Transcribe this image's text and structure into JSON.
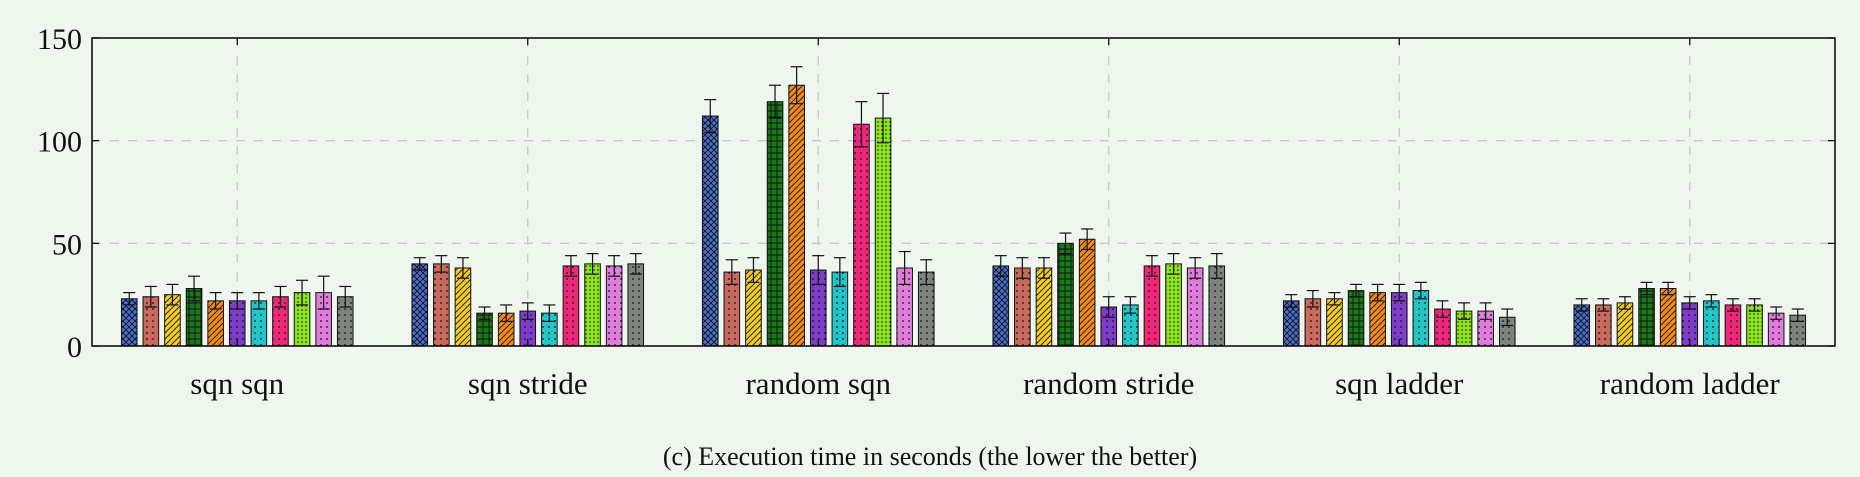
{
  "chart_data": {
    "type": "bar",
    "caption": "(c) Execution time in seconds (the lower the better)",
    "categories": [
      "sqn sqn",
      "sqn stride",
      "random sqn",
      "random stride",
      "sqn ladder",
      "random ladder"
    ],
    "ylim": [
      0,
      150
    ],
    "yticks": [
      0,
      50,
      100,
      150
    ],
    "grid": true,
    "legend": "none",
    "series": [
      {
        "color": "#4a6fd0",
        "pattern": "crosshatch-diag",
        "values": [
          23,
          40,
          112,
          39,
          22,
          20
        ],
        "errors": [
          3,
          3,
          8,
          5,
          3,
          3
        ]
      },
      {
        "color": "#c86a5e",
        "pattern": "dots",
        "values": [
          24,
          40,
          36,
          38,
          23,
          20
        ],
        "errors": [
          5,
          4,
          6,
          5,
          4,
          3
        ]
      },
      {
        "color": "#f2cc26",
        "pattern": "diag-right",
        "values": [
          25,
          38,
          37,
          38,
          23,
          21
        ],
        "errors": [
          5,
          5,
          6,
          5,
          3,
          3
        ]
      },
      {
        "color": "#1a7a1a",
        "pattern": "grid",
        "values": [
          28,
          16,
          119,
          50,
          27,
          28
        ],
        "errors": [
          6,
          3,
          8,
          5,
          3,
          3
        ]
      },
      {
        "color": "#f28a1c",
        "pattern": "diag-right",
        "values": [
          22,
          16,
          127,
          52,
          26,
          28
        ],
        "errors": [
          4,
          4,
          9,
          5,
          4,
          3
        ]
      },
      {
        "color": "#7e3cc8",
        "pattern": "dots",
        "values": [
          22,
          17,
          37,
          19,
          26,
          21
        ],
        "errors": [
          4,
          4,
          7,
          5,
          4,
          3
        ]
      },
      {
        "color": "#22c5c8",
        "pattern": "dots",
        "values": [
          22,
          16,
          36,
          20,
          27,
          22
        ],
        "errors": [
          4,
          4,
          7,
          4,
          4,
          3
        ]
      },
      {
        "color": "#f0287a",
        "pattern": "dots",
        "values": [
          24,
          39,
          108,
          39,
          18,
          20
        ],
        "errors": [
          5,
          5,
          11,
          5,
          4,
          3
        ]
      },
      {
        "color": "#8ee61a",
        "pattern": "dots-dense",
        "values": [
          26,
          40,
          111,
          40,
          17,
          20
        ],
        "errors": [
          6,
          5,
          12,
          5,
          4,
          3
        ]
      },
      {
        "color": "#e07ddc",
        "pattern": "dots",
        "values": [
          26,
          39,
          38,
          38,
          17,
          16
        ],
        "errors": [
          8,
          5,
          8,
          5,
          4,
          3
        ]
      },
      {
        "color": "#7f837f",
        "pattern": "dots",
        "values": [
          24,
          40,
          36,
          39,
          14,
          15
        ],
        "errors": [
          5,
          5,
          6,
          6,
          4,
          3
        ]
      }
    ]
  }
}
